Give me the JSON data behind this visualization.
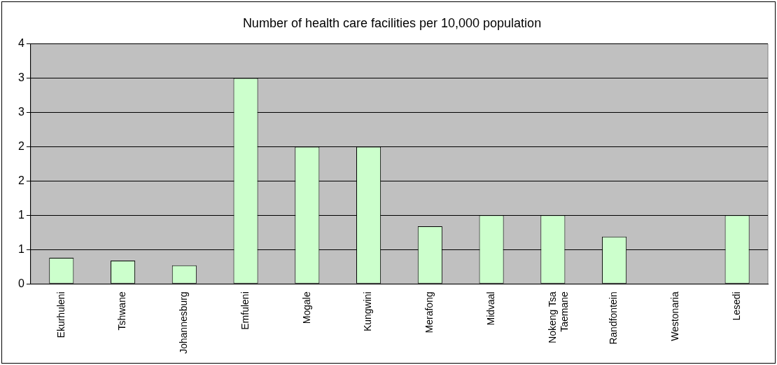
{
  "chart_data": {
    "type": "bar",
    "title": "Number of health care facilities per 10,000 population",
    "categories": [
      "Ekurhuleni",
      "Tshwane",
      "Johannesburg",
      "Emfuleni",
      "Mogale",
      "Kungwini",
      "Merafong",
      "Midvaal",
      "Nokeng Tsa Taemane",
      "Randfontein",
      "Westonaria",
      "Lesedi"
    ],
    "values": [
      0.38,
      0.34,
      0.27,
      3.0,
      2.0,
      2.0,
      0.84,
      1.0,
      1.0,
      0.69,
      0,
      1.0
    ],
    "color": "#ccffcc",
    "ylim": [
      0,
      3.5
    ],
    "yticks": [
      0,
      {
        "value": 0.5,
        "label": "1"
      },
      1,
      {
        "value": 1.5,
        "label": "2"
      },
      2,
      {
        "value": 2.5,
        "label": "3"
      },
      3,
      {
        "value": 3.5,
        "label": "4"
      }
    ],
    "grid": "y",
    "legend": false
  }
}
